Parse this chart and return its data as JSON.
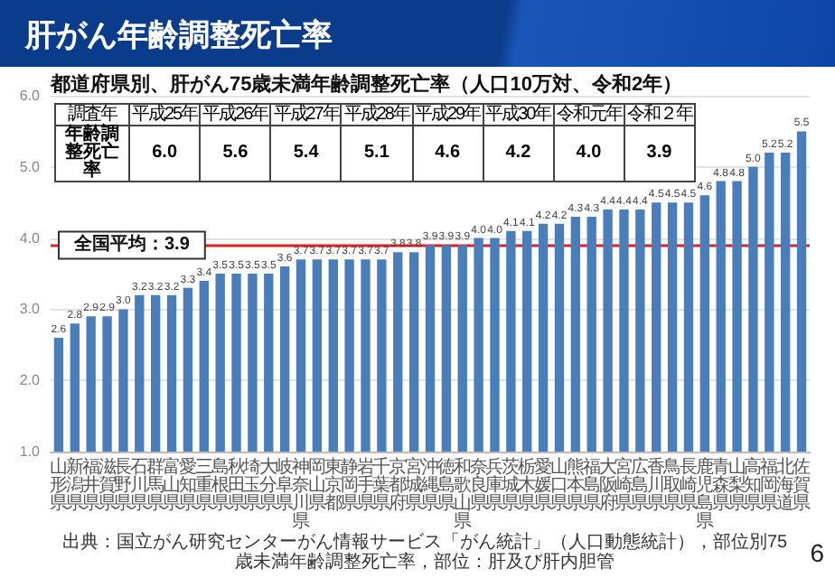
{
  "chart_data": {
    "type": "bar",
    "title": "肝がん年齢調整死亡率",
    "subtitle": "都道府県別、肝がん75歳未満年齢調整死亡率（人口10万対、令和2年）",
    "categories": [
      "山形県",
      "新潟県",
      "福井県",
      "滋賀県",
      "長野県",
      "石川県",
      "群馬県",
      "富山県",
      "愛知県",
      "三重県",
      "島根県",
      "秋田県",
      "埼玉県",
      "大分県",
      "岐阜県",
      "神奈川県",
      "岡山県",
      "東京都",
      "静岡県",
      "岩手県",
      "千葉県",
      "京都府",
      "宮城県",
      "沖縄県",
      "徳島県",
      "和歌山県",
      "奈良県",
      "兵庫県",
      "茨城県",
      "栃木県",
      "愛媛県",
      "山口県",
      "熊本県",
      "福島県",
      "大阪府",
      "宮崎県",
      "広島県",
      "香川県",
      "鳥取県",
      "長崎県",
      "鹿児島県",
      "青森県",
      "山梨県",
      "高知県",
      "福岡県",
      "北海道",
      "佐賀県"
    ],
    "values": [
      2.6,
      2.8,
      2.9,
      2.9,
      3.0,
      3.2,
      3.2,
      3.2,
      3.3,
      3.4,
      3.5,
      3.5,
      3.5,
      3.5,
      3.6,
      3.7,
      3.7,
      3.7,
      3.7,
      3.7,
      3.7,
      3.8,
      3.8,
      3.9,
      3.9,
      3.9,
      4.0,
      4.0,
      4.1,
      4.1,
      4.2,
      4.2,
      4.3,
      4.3,
      4.4,
      4.4,
      4.4,
      4.5,
      4.5,
      4.5,
      4.6,
      4.8,
      4.8,
      5.0,
      5.2,
      5.2,
      5.5
    ],
    "color": "#4a7ebb",
    "value_labels": [
      "2.6",
      "2.8",
      "2.9",
      "2.9",
      "3.0",
      "3.2",
      "3.2",
      "3.2",
      "3.3",
      "3.4",
      "3.5",
      "3.5",
      "3.5",
      "3.5",
      "3.6",
      "3.7",
      "3.7",
      "3.7",
      "3.7",
      "3.7",
      "3.7",
      "3.8",
      "3.8",
      "3.9",
      "3.9",
      "3.9",
      "4.0",
      "4.0",
      "4.1",
      "4.1",
      "4.2",
      "4.2",
      "4.3",
      "4.3",
      "4.4",
      "4.4",
      "4.4",
      "4.5",
      "4.5",
      "4.5",
      "4.6",
      "4.8",
      "4.8",
      "5.0",
      "5.2",
      "5.2",
      "5.5"
    ],
    "ylim": [
      1,
      6
    ],
    "yticks": [
      {
        "value": 1,
        "label": "1.0"
      },
      {
        "value": 2,
        "label": "2.0"
      },
      {
        "value": 3,
        "label": "3.0"
      },
      {
        "value": 4,
        "label": "4.0"
      },
      {
        "value": 5,
        "label": "5.0"
      },
      {
        "value": 6,
        "label": "6.0"
      }
    ],
    "grid": "y",
    "ref_lines": [
      {
        "axis": "y",
        "value": 3.9,
        "label": "全国平均：3.9",
        "color": "#e02020"
      }
    ],
    "annotations": [
      "調査年",
      "平成25年",
      "平成26年",
      "平成27年",
      "平成28年",
      "平成29年",
      "平成30年",
      "令和元年",
      "令和２年",
      "年齢調整死亡率",
      "6.0",
      "5.6",
      "5.4",
      "5.1",
      "4.6",
      "4.2",
      "4.0",
      "3.9",
      "出典：国立がん研究センターがん情報サービス「がん統計」（人口動態統計），部位別75歳未満年齢調整死亡率，部位：肝及び肝内胆管",
      "6"
    ]
  }
}
